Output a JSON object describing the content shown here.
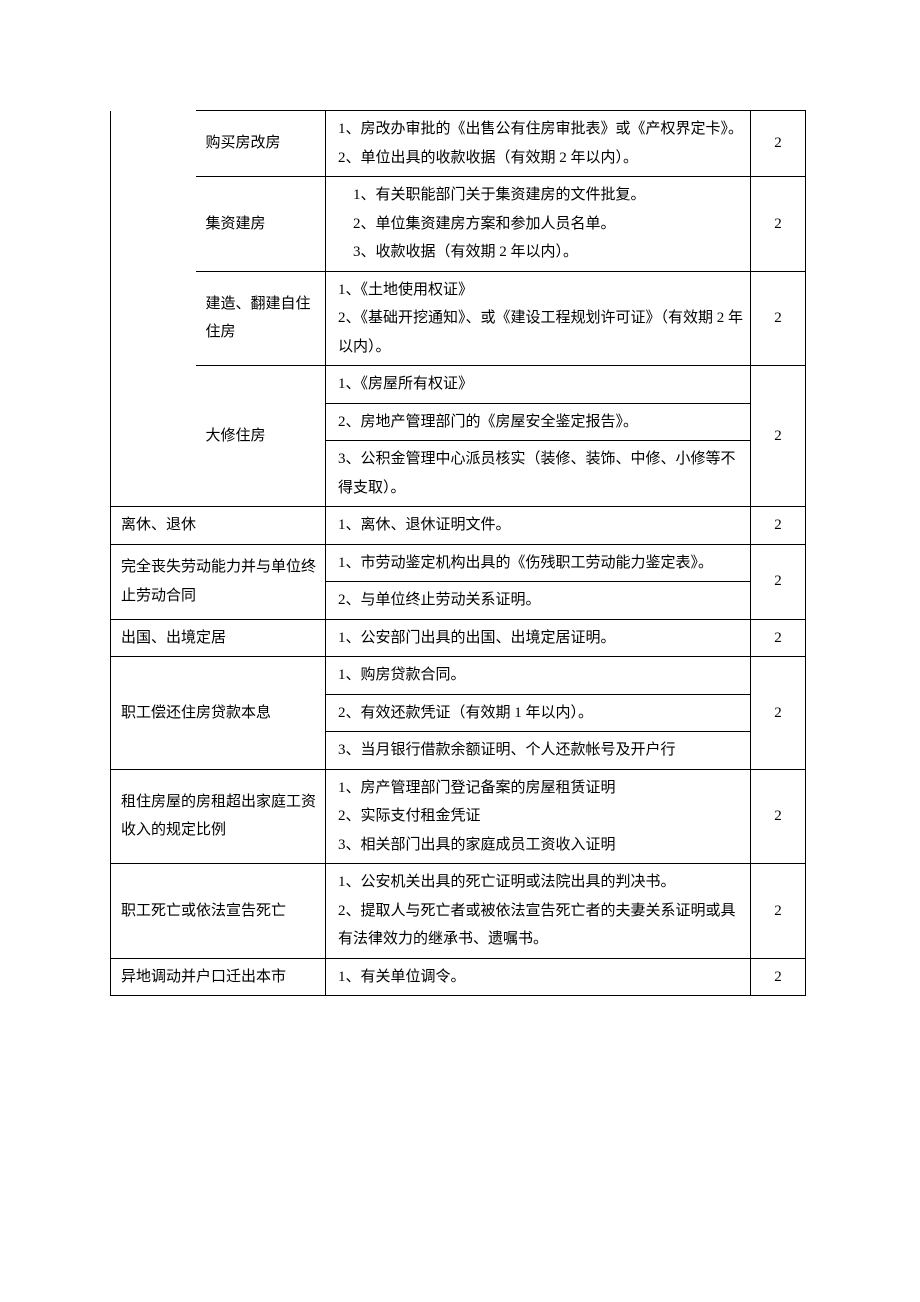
{
  "rows": {
    "r1": {
      "cat": "购买房改房",
      "desc": "1、房改办审批的《出售公有住房审批表》或《产权界定卡》。\n2、单位出具的收款收据（有效期 2 年以内）。",
      "num": "2"
    },
    "r2": {
      "cat": "集资建房",
      "desc": "　1、有关职能部门关于集资建房的文件批复。\n　2、单位集资建房方案和参加人员名单。\n　3、收款收据（有效期 2 年以内）。",
      "num": "2"
    },
    "r3": {
      "cat": "建造、翻建自住住房",
      "desc": "1、《土地使用权证》\n2、《基础开挖通知》、或《建设工程规划许可证》（有效期 2 年以内）。",
      "num": "2"
    },
    "r4": {
      "cat": "大修住房",
      "d1": "1、《房屋所有权证》",
      "d2": "2、房地产管理部门的《房屋安全鉴定报告》。",
      "d3": "3、公积金管理中心派员核实（装修、装饰、中修、小修等不得支取）。",
      "num": "2"
    },
    "r5": {
      "cat": "离休、退休",
      "desc": "1、离休、退休证明文件。",
      "num": "2"
    },
    "r6": {
      "cat": "完全丧失劳动能力并与单位终止劳动合同",
      "d1": "1、市劳动鉴定机构出具的《伤残职工劳动能力鉴定表》。",
      "d2": "2、与单位终止劳动关系证明。",
      "num": "2"
    },
    "r7": {
      "cat": "出国、出境定居",
      "desc": "1、公安部门出具的出国、出境定居证明。",
      "num": "2"
    },
    "r8": {
      "cat": "职工偿还住房贷款本息",
      "d1": "1、购房贷款合同。",
      "d2": "2、有效还款凭证（有效期 1 年以内）。",
      "d3": "3、当月银行借款余额证明、个人还款帐号及开户行",
      "num": "2"
    },
    "r9": {
      "cat": "租住房屋的房租超出家庭工资收入的规定比例",
      "desc": "1、房产管理部门登记备案的房屋租赁证明\n2、实际支付租金凭证\n3、相关部门出具的家庭成员工资收入证明",
      "num": "2"
    },
    "r10": {
      "cat": "职工死亡或依法宣告死亡",
      "desc": "1、公安机关出具的死亡证明或法院出具的判决书。\n2、提取人与死亡者或被依法宣告死亡者的夫妻关系证明或具有法律效力的继承书、遗嘱书。",
      "num": "2"
    },
    "r11": {
      "cat": "异地调动并户口迁出本市",
      "desc": "1、有关单位调令。",
      "num": "2"
    }
  }
}
